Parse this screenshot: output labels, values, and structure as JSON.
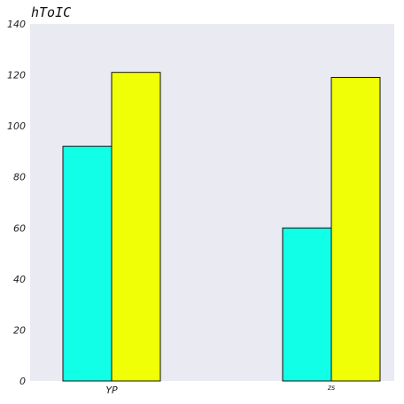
{
  "chart_data": {
    "type": "bar",
    "title": "hToIC",
    "categories": [
      "YP",
      "zs"
    ],
    "series": [
      {
        "values": [
          92,
          60
        ],
        "color": "#11ffe6"
      },
      {
        "values": [
          121,
          119
        ],
        "color": "#f0ff05"
      }
    ],
    "ylim": [
      0,
      140
    ],
    "yticks": [
      0,
      20,
      40,
      60,
      80,
      100,
      120,
      140
    ],
    "grid": false,
    "background_color": "#e9eaf2",
    "bar_edge_color": "#111111"
  }
}
